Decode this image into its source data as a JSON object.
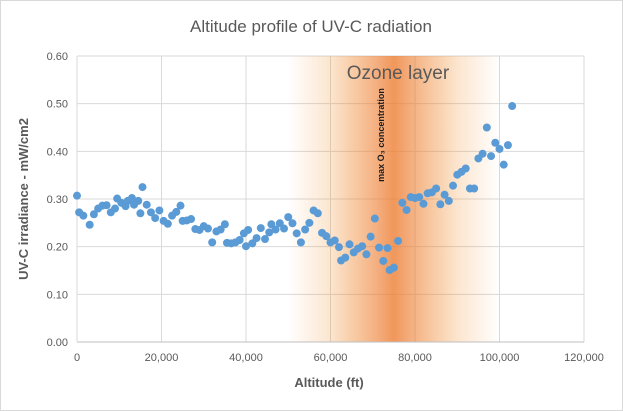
{
  "chart_data": {
    "type": "scatter",
    "title": "Altitude profile of UV-C radiation",
    "xlabel": "Altitude (ft)",
    "ylabel": "UV-C irradiance - mW/cm2",
    "xlim": [
      0,
      120000
    ],
    "ylim": [
      0,
      0.6
    ],
    "x_ticks": [
      "0",
      "20,000",
      "40,000",
      "60,000",
      "80,000",
      "100,000",
      "120,000"
    ],
    "y_ticks": [
      "0.00",
      "0.10",
      "0.20",
      "0.30",
      "0.40",
      "0.50",
      "0.60"
    ],
    "grid": "horizontal",
    "legend": "none",
    "colors": {
      "marker": "#5b9bd5",
      "band": "#f08a24",
      "band_center": "#ed7d31"
    },
    "annotations": {
      "band_label": "Ozone layer",
      "max_label": "max O₃ concentration",
      "band_range": [
        50000,
        100000
      ],
      "band_peak": 75000
    },
    "series": [
      {
        "name": "",
        "points": [
          [
            0,
            0.307
          ],
          [
            500,
            0.272
          ],
          [
            1500,
            0.265
          ],
          [
            3000,
            0.246
          ],
          [
            4000,
            0.268
          ],
          [
            5000,
            0.28
          ],
          [
            6000,
            0.286
          ],
          [
            7000,
            0.287
          ],
          [
            8000,
            0.272
          ],
          [
            9000,
            0.28
          ],
          [
            9500,
            0.301
          ],
          [
            10500,
            0.292
          ],
          [
            11500,
            0.285
          ],
          [
            12000,
            0.296
          ],
          [
            13000,
            0.302
          ],
          [
            13500,
            0.288
          ],
          [
            14500,
            0.296
          ],
          [
            15000,
            0.27
          ],
          [
            15500,
            0.325
          ],
          [
            16500,
            0.288
          ],
          [
            17500,
            0.272
          ],
          [
            18500,
            0.26
          ],
          [
            19500,
            0.276
          ],
          [
            20500,
            0.254
          ],
          [
            21500,
            0.248
          ],
          [
            22500,
            0.265
          ],
          [
            23500,
            0.273
          ],
          [
            24500,
            0.286
          ],
          [
            25000,
            0.254
          ],
          [
            26000,
            0.255
          ],
          [
            27000,
            0.258
          ],
          [
            28000,
            0.237
          ],
          [
            29000,
            0.235
          ],
          [
            30000,
            0.243
          ],
          [
            31000,
            0.238
          ],
          [
            32000,
            0.209
          ],
          [
            33000,
            0.232
          ],
          [
            34000,
            0.236
          ],
          [
            35000,
            0.247
          ],
          [
            35500,
            0.208
          ],
          [
            36500,
            0.207
          ],
          [
            37500,
            0.209
          ],
          [
            38500,
            0.214
          ],
          [
            39500,
            0.228
          ],
          [
            40000,
            0.201
          ],
          [
            40500,
            0.235
          ],
          [
            41500,
            0.207
          ],
          [
            42500,
            0.218
          ],
          [
            43500,
            0.239
          ],
          [
            44500,
            0.216
          ],
          [
            45500,
            0.23
          ],
          [
            46000,
            0.247
          ],
          [
            47000,
            0.236
          ],
          [
            48000,
            0.249
          ],
          [
            49000,
            0.238
          ],
          [
            50000,
            0.262
          ],
          [
            51000,
            0.249
          ],
          [
            52000,
            0.228
          ],
          [
            53000,
            0.209
          ],
          [
            54000,
            0.236
          ],
          [
            55000,
            0.25
          ],
          [
            56000,
            0.276
          ],
          [
            57000,
            0.27
          ],
          [
            58000,
            0.229
          ],
          [
            59000,
            0.222
          ],
          [
            60000,
            0.209
          ],
          [
            61000,
            0.213
          ],
          [
            62000,
            0.199
          ],
          [
            62500,
            0.171
          ],
          [
            63500,
            0.177
          ],
          [
            64500,
            0.205
          ],
          [
            65500,
            0.188
          ],
          [
            66500,
            0.196
          ],
          [
            67500,
            0.201
          ],
          [
            68500,
            0.184
          ],
          [
            69500,
            0.221
          ],
          [
            70500,
            0.259
          ],
          [
            71500,
            0.198
          ],
          [
            72500,
            0.17
          ],
          [
            73500,
            0.197
          ],
          [
            74000,
            0.151
          ],
          [
            75000,
            0.156
          ],
          [
            76000,
            0.212
          ],
          [
            77000,
            0.292
          ],
          [
            78000,
            0.277
          ],
          [
            79000,
            0.304
          ],
          [
            80000,
            0.302
          ],
          [
            81000,
            0.304
          ],
          [
            82000,
            0.29
          ],
          [
            83000,
            0.312
          ],
          [
            84000,
            0.314
          ],
          [
            85000,
            0.322
          ],
          [
            86000,
            0.289
          ],
          [
            87000,
            0.309
          ],
          [
            88000,
            0.296
          ],
          [
            89000,
            0.328
          ],
          [
            90000,
            0.351
          ],
          [
            91000,
            0.357
          ],
          [
            92000,
            0.364
          ],
          [
            93000,
            0.322
          ],
          [
            94000,
            0.322
          ],
          [
            95000,
            0.385
          ],
          [
            96000,
            0.395
          ],
          [
            97000,
            0.45
          ],
          [
            98000,
            0.39
          ],
          [
            99000,
            0.418
          ],
          [
            100000,
            0.405
          ],
          [
            101000,
            0.372
          ],
          [
            102000,
            0.413
          ],
          [
            103000,
            0.495
          ]
        ]
      }
    ]
  }
}
